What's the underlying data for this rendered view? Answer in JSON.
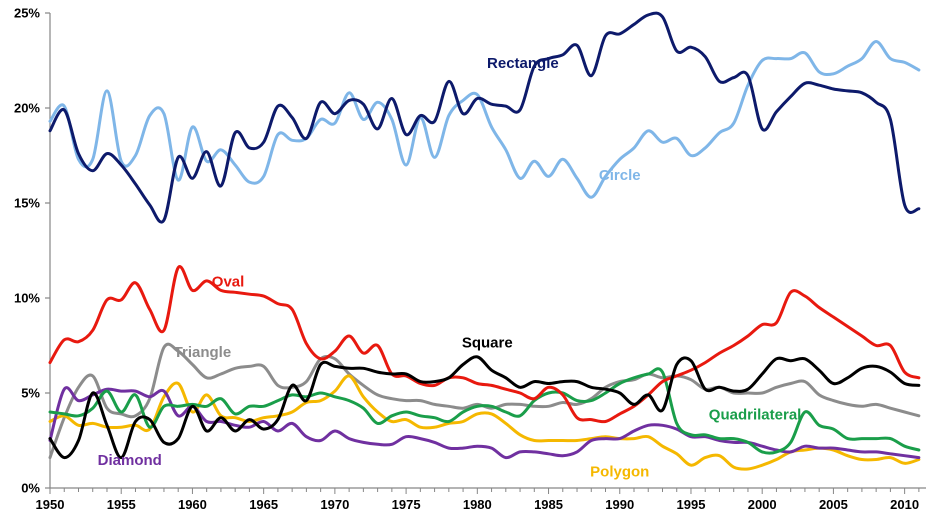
{
  "chart_data": {
    "type": "line",
    "title": "",
    "xlabel": "",
    "ylabel": "",
    "xlim": [
      1950,
      2011.5
    ],
    "ylim": [
      0,
      25
    ],
    "x_ticks": [
      1950,
      1955,
      1960,
      1965,
      1970,
      1975,
      1980,
      1985,
      1990,
      1995,
      2000,
      2005,
      2010
    ],
    "y_ticks": [
      0,
      5,
      10,
      15,
      20,
      25
    ],
    "y_tick_labels": [
      "0%",
      "5%",
      "10%",
      "15%",
      "20%",
      "25%"
    ],
    "grid": false,
    "legend": "none (series labelled directly on the lines)",
    "x": [
      1950,
      1951,
      1952,
      1953,
      1954,
      1955,
      1956,
      1957,
      1958,
      1959,
      1960,
      1961,
      1962,
      1963,
      1964,
      1965,
      1966,
      1967,
      1968,
      1969,
      1970,
      1971,
      1972,
      1973,
      1974,
      1975,
      1976,
      1977,
      1978,
      1979,
      1980,
      1981,
      1982,
      1983,
      1984,
      1985,
      1986,
      1987,
      1988,
      1989,
      1990,
      1991,
      1992,
      1993,
      1994,
      1995,
      1996,
      1997,
      1998,
      1999,
      2000,
      2001,
      2002,
      2003,
      2004,
      2005,
      2006,
      2007,
      2008,
      2009,
      2010,
      2011
    ],
    "series": [
      {
        "name": "Rectangle",
        "color": "#0d1a6b",
        "label_year": 1983.2,
        "label_value": 22.1,
        "values": [
          18.8,
          19.9,
          17.6,
          16.7,
          17.6,
          17.0,
          16.0,
          14.9,
          14.1,
          17.4,
          16.3,
          17.7,
          15.9,
          18.7,
          17.9,
          18.2,
          20.1,
          19.5,
          18.4,
          20.3,
          19.7,
          20.4,
          20.2,
          18.9,
          20.5,
          18.6,
          19.6,
          19.3,
          21.4,
          19.7,
          20.5,
          20.2,
          20.1,
          19.9,
          22.2,
          22.6,
          22.8,
          23.3,
          21.7,
          23.8,
          23.9,
          24.4,
          24.9,
          24.8,
          23.0,
          23.2,
          22.7,
          21.4,
          21.6,
          21.7,
          18.9,
          19.8,
          20.6,
          21.3,
          21.2,
          21.0,
          20.9,
          20.8,
          20.3,
          19.4,
          14.9,
          14.7
        ]
      },
      {
        "name": "Circle",
        "color": "#7fb6e8",
        "label_year": 1990.0,
        "label_value": 16.2,
        "values": [
          19.3,
          20.1,
          17.3,
          17.3,
          20.9,
          17.2,
          17.5,
          19.6,
          19.7,
          16.2,
          19.0,
          17.2,
          17.8,
          17.0,
          16.1,
          16.4,
          18.6,
          18.3,
          18.4,
          19.4,
          19.2,
          20.8,
          19.4,
          20.3,
          19.4,
          17.0,
          19.5,
          17.4,
          19.6,
          20.4,
          20.7,
          19.0,
          17.8,
          16.3,
          17.2,
          16.4,
          17.3,
          16.3,
          15.3,
          16.4,
          17.3,
          17.9,
          18.8,
          18.2,
          18.4,
          17.5,
          17.9,
          18.7,
          19.2,
          21.2,
          22.5,
          22.6,
          22.6,
          22.9,
          21.9,
          21.8,
          22.2,
          22.6,
          23.5,
          22.6,
          22.4,
          22.0
        ]
      },
      {
        "name": "Oval",
        "color": "#e8190f",
        "label_year": 1962.5,
        "label_value": 10.6,
        "values": [
          6.6,
          7.8,
          7.7,
          8.3,
          9.9,
          9.9,
          10.8,
          9.4,
          8.3,
          11.6,
          10.4,
          10.9,
          10.4,
          10.3,
          10.2,
          10.1,
          9.7,
          9.4,
          7.6,
          6.8,
          7.2,
          8.0,
          7.1,
          7.5,
          6.0,
          5.9,
          5.5,
          5.4,
          5.8,
          5.8,
          5.5,
          5.4,
          5.2,
          5.0,
          4.7,
          5.3,
          4.9,
          3.7,
          3.6,
          3.5,
          3.9,
          4.3,
          4.9,
          5.6,
          5.9,
          6.2,
          6.6,
          7.1,
          7.5,
          8.0,
          8.6,
          8.7,
          10.3,
          10.1,
          9.5,
          9.0,
          8.5,
          8.0,
          7.5,
          7.5,
          6.1,
          5.8
        ]
      },
      {
        "name": "Square",
        "color": "#000000",
        "label_year": 1980.7,
        "label_value": 7.4,
        "values": [
          2.6,
          1.6,
          2.5,
          5.0,
          3.3,
          1.6,
          3.5,
          3.6,
          2.4,
          2.6,
          4.3,
          3.0,
          3.7,
          3.0,
          3.6,
          3.1,
          3.6,
          5.4,
          4.6,
          6.5,
          6.4,
          6.3,
          6.3,
          6.1,
          6.0,
          6.0,
          5.6,
          5.6,
          5.8,
          6.5,
          6.9,
          6.2,
          5.8,
          5.3,
          5.6,
          5.5,
          5.6,
          5.6,
          5.3,
          5.2,
          5.0,
          4.4,
          4.9,
          4.1,
          6.5,
          6.7,
          5.2,
          5.3,
          5.1,
          5.2,
          6.0,
          6.8,
          6.7,
          6.8,
          6.2,
          5.5,
          5.8,
          6.3,
          6.4,
          6.1,
          5.5,
          5.4
        ]
      },
      {
        "name": "Triangle",
        "color": "#8c8c8c",
        "label_year": 1960.7,
        "label_value": 6.9,
        "values": [
          1.6,
          3.7,
          5.3,
          5.9,
          4.2,
          3.9,
          3.8,
          4.7,
          7.4,
          7.2,
          6.5,
          5.8,
          6.0,
          6.3,
          6.4,
          6.4,
          5.4,
          5.3,
          5.6,
          6.8,
          6.8,
          6.0,
          5.4,
          4.9,
          4.7,
          4.6,
          4.6,
          4.4,
          4.3,
          4.2,
          4.4,
          4.2,
          4.4,
          4.4,
          4.3,
          4.3,
          4.5,
          4.4,
          4.7,
          5.3,
          5.6,
          5.7,
          6.0,
          5.8,
          5.9,
          5.7,
          5.2,
          5.3,
          5.0,
          5.0,
          5.0,
          5.3,
          5.5,
          5.6,
          4.9,
          4.6,
          4.4,
          4.3,
          4.4,
          4.2,
          4.0,
          3.8
        ]
      },
      {
        "name": "Quadrilateral",
        "color": "#1a9e4a",
        "label_year": 1999.5,
        "label_value": 3.6,
        "values": [
          4.0,
          3.9,
          3.8,
          4.2,
          5.1,
          4.0,
          4.9,
          3.2,
          4.3,
          4.3,
          4.4,
          4.3,
          4.7,
          3.9,
          4.3,
          4.3,
          4.6,
          4.9,
          4.8,
          5.0,
          4.8,
          4.6,
          4.2,
          3.4,
          3.8,
          4.0,
          3.8,
          3.7,
          3.5,
          4.0,
          4.3,
          4.3,
          4.0,
          3.8,
          4.6,
          5.0,
          5.0,
          4.6,
          4.6,
          5.0,
          5.5,
          5.8,
          6.0,
          6.1,
          3.4,
          2.8,
          2.8,
          2.6,
          2.6,
          2.4,
          1.9,
          1.9,
          2.4,
          4.0,
          3.3,
          3.1,
          2.6,
          2.6,
          2.6,
          2.6,
          2.2,
          2.0
        ]
      },
      {
        "name": "Diamond",
        "color": "#7030a0",
        "label_year": 1955.6,
        "label_value": 1.2,
        "values": [
          2.5,
          5.2,
          4.6,
          4.9,
          5.2,
          5.1,
          5.1,
          4.8,
          5.1,
          3.8,
          4.3,
          3.5,
          3.5,
          3.3,
          3.2,
          3.5,
          3.0,
          3.4,
          2.7,
          2.5,
          3.0,
          2.6,
          2.4,
          2.3,
          2.3,
          2.7,
          2.6,
          2.4,
          2.1,
          2.1,
          2.2,
          2.1,
          1.6,
          1.9,
          1.9,
          1.8,
          1.7,
          1.9,
          2.5,
          2.6,
          2.6,
          3.0,
          3.3,
          3.3,
          3.1,
          2.7,
          2.7,
          2.5,
          2.4,
          2.4,
          2.2,
          2.0,
          1.9,
          2.2,
          2.1,
          2.1,
          2.0,
          1.9,
          1.9,
          1.8,
          1.7,
          1.6
        ]
      },
      {
        "name": "Polygon",
        "color": "#f5b800",
        "label_year": 1990.0,
        "label_value": 0.6,
        "values": [
          3.5,
          3.8,
          3.3,
          3.4,
          3.2,
          3.2,
          3.3,
          3.1,
          4.8,
          5.5,
          4.0,
          4.9,
          3.8,
          3.7,
          3.5,
          3.7,
          3.8,
          4.0,
          4.5,
          4.6,
          5.1,
          5.9,
          4.8,
          4.0,
          3.5,
          3.6,
          3.2,
          3.2,
          3.4,
          3.5,
          3.9,
          3.9,
          3.4,
          2.8,
          2.5,
          2.5,
          2.5,
          2.5,
          2.6,
          2.7,
          2.6,
          2.6,
          2.7,
          2.2,
          1.8,
          1.2,
          1.6,
          1.7,
          1.1,
          1.0,
          1.2,
          1.5,
          1.9,
          2.0,
          2.1,
          2.0,
          1.7,
          1.5,
          1.5,
          1.6,
          1.3,
          1.5
        ]
      }
    ]
  }
}
